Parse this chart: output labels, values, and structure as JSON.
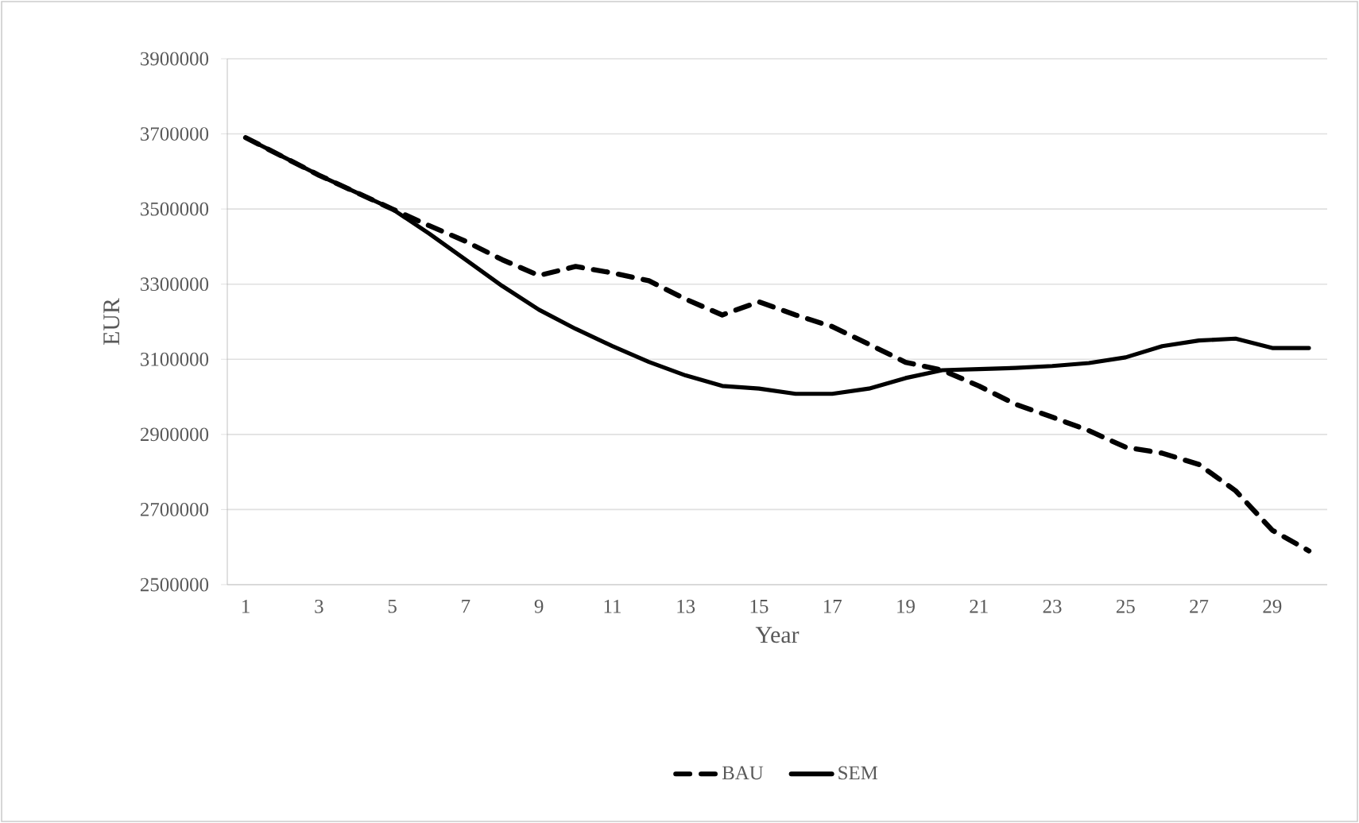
{
  "chart_data": {
    "type": "line",
    "xlabel": "Year",
    "ylabel": "EUR",
    "categories": [
      "1",
      null,
      "3",
      null,
      "5",
      null,
      "7",
      null,
      "9",
      null,
      "11",
      null,
      "13",
      null,
      "15",
      null,
      "17",
      null,
      "19",
      null,
      "21",
      null,
      "23",
      null,
      "25",
      null,
      "27",
      null,
      "29",
      null
    ],
    "series": [
      {
        "name": "BAU",
        "color": "#000000",
        "line_style": "dashed",
        "values": [
          3690000,
          3640000,
          3590000,
          3545000,
          3500000,
          3456000,
          3414000,
          3365000,
          3323000,
          3347000,
          3330000,
          3309000,
          3260000,
          3218000,
          3253000,
          3218000,
          3187000,
          3140000,
          3092000,
          3071000,
          3029000,
          2980000,
          2946000,
          2910000,
          2866000,
          2850000,
          2820000,
          2750000,
          2645000,
          2590000
        ]
      },
      {
        "name": "SEM",
        "color": "#000000",
        "line_style": "solid",
        "values": [
          3690000,
          3640000,
          3590000,
          3545000,
          3500000,
          3435000,
          3365000,
          3295000,
          3232000,
          3181000,
          3135000,
          3093000,
          3057000,
          3029000,
          3022000,
          3008000,
          3008000,
          3022000,
          3050000,
          3071000,
          3074000,
          3077000,
          3082000,
          3090000,
          3105000,
          3135000,
          3150000,
          3155000,
          3130000,
          3130000
        ]
      }
    ],
    "ylim": [
      2500000,
      3900000
    ],
    "yticks": [
      2500000,
      2700000,
      2900000,
      3100000,
      3300000,
      3500000,
      3700000,
      3900000
    ],
    "grid": "y",
    "legend": "bottom",
    "marker": "none"
  }
}
